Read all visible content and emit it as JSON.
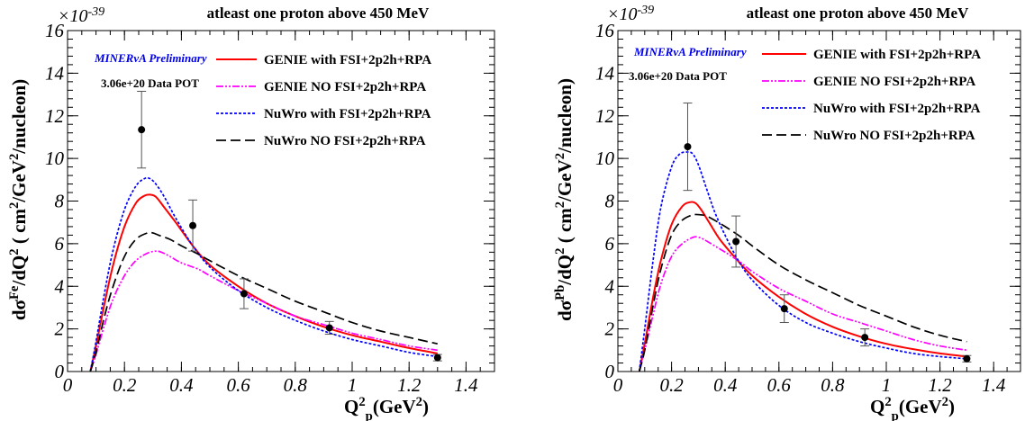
{
  "chart_data": [
    {
      "type": "line",
      "title": "atleast one proton above 450 MeV",
      "xlabel": "Q²_p(GeV²)",
      "ylabel": "dσ^Fe/dQ² ( cm²/GeV²/nucleon)",
      "y_multiplier": "×10^-39",
      "xlim": [
        0,
        1.5
      ],
      "ylim": [
        0,
        16
      ],
      "xticks": [
        "0",
        "0.2",
        "0.4",
        "0.6",
        "0.8",
        "1",
        "1.2",
        "1.4"
      ],
      "yticks": [
        "0",
        "2",
        "4",
        "6",
        "8",
        "10",
        "12",
        "14",
        "16"
      ],
      "annotations": [
        "MINERvA Preliminary",
        "3.06e+20 Data POT"
      ],
      "legend_position": "top-right",
      "grid": false,
      "series": [
        {
          "name": "GENIE with FSI+2p2h+RPA",
          "color": "#ff0000",
          "style": "solid",
          "x": [
            0.08,
            0.1,
            0.13,
            0.16,
            0.2,
            0.24,
            0.27,
            0.29,
            0.31,
            0.34,
            0.38,
            0.44,
            0.5,
            0.6,
            0.7,
            0.8,
            0.9,
            1.0,
            1.1,
            1.2,
            1.3
          ],
          "y": [
            0,
            1.2,
            3.2,
            5.0,
            6.8,
            7.9,
            8.25,
            8.3,
            8.2,
            7.7,
            7.0,
            5.9,
            5.0,
            4.0,
            3.2,
            2.6,
            2.1,
            1.7,
            1.4,
            1.1,
            0.85
          ]
        },
        {
          "name": "GENIE NO FSI+2p2h+RPA",
          "color": "#ff00ff",
          "style": "dashdot",
          "x": [
            0.08,
            0.1,
            0.13,
            0.16,
            0.2,
            0.24,
            0.28,
            0.31,
            0.33,
            0.36,
            0.4,
            0.46,
            0.5,
            0.6,
            0.7,
            0.8,
            0.9,
            1.0,
            1.1,
            1.2,
            1.3
          ],
          "y": [
            0,
            0.8,
            2.2,
            3.4,
            4.5,
            5.2,
            5.55,
            5.65,
            5.6,
            5.4,
            5.1,
            4.8,
            4.5,
            3.8,
            3.2,
            2.6,
            2.2,
            1.8,
            1.5,
            1.2,
            1.0
          ]
        },
        {
          "name": "NuWro with FSI+2p2h+RPA",
          "color": "#0000ff",
          "style": "dotted",
          "x": [
            0.08,
            0.1,
            0.13,
            0.16,
            0.2,
            0.24,
            0.27,
            0.29,
            0.31,
            0.34,
            0.38,
            0.44,
            0.5,
            0.6,
            0.7,
            0.8,
            0.9,
            1.0,
            1.1,
            1.2,
            1.3
          ],
          "y": [
            0,
            1.4,
            3.7,
            5.7,
            7.6,
            8.7,
            9.05,
            9.05,
            8.8,
            8.2,
            7.2,
            5.9,
            4.9,
            3.8,
            3.0,
            2.4,
            1.9,
            1.5,
            1.2,
            0.9,
            0.7
          ]
        },
        {
          "name": "NuWro NO FSI+2p2h+RPA",
          "color": "#000000",
          "style": "dashed",
          "x": [
            0.08,
            0.1,
            0.13,
            0.16,
            0.2,
            0.24,
            0.28,
            0.3,
            0.32,
            0.36,
            0.4,
            0.46,
            0.5,
            0.6,
            0.7,
            0.8,
            0.9,
            1.0,
            1.1,
            1.2,
            1.3
          ],
          "y": [
            0,
            0.9,
            2.6,
            4.0,
            5.4,
            6.2,
            6.5,
            6.5,
            6.4,
            6.2,
            5.9,
            5.5,
            5.2,
            4.5,
            3.9,
            3.3,
            2.8,
            2.3,
            1.9,
            1.6,
            1.3
          ]
        }
      ],
      "data_points": {
        "x": [
          0.26,
          0.44,
          0.62,
          0.92,
          1.3
        ],
        "y": [
          11.35,
          6.85,
          3.65,
          2.05,
          0.65
        ],
        "yerr": [
          1.8,
          1.2,
          0.7,
          0.3,
          0.15
        ]
      }
    },
    {
      "type": "line",
      "title": "atleast one proton above 450 MeV",
      "xlabel": "Q²_p(GeV²)",
      "ylabel": "dσ^Pb/dQ² ( cm²/GeV²/nucleon)",
      "y_multiplier": "×10^-39",
      "xlim": [
        0,
        1.5
      ],
      "ylim": [
        0,
        16
      ],
      "xticks": [
        "0",
        "0.2",
        "0.4",
        "0.6",
        "0.8",
        "1",
        "1.2",
        "1.4"
      ],
      "yticks": [
        "0",
        "2",
        "4",
        "6",
        "8",
        "10",
        "12",
        "14",
        "16"
      ],
      "annotations": [
        "MINERvA Preliminary",
        "3.06e+20 Data POT"
      ],
      "legend_position": "top-right",
      "grid": false,
      "series": [
        {
          "name": "GENIE with FSI+2p2h+RPA",
          "color": "#ff0000",
          "style": "solid",
          "x": [
            0.08,
            0.1,
            0.13,
            0.16,
            0.2,
            0.24,
            0.27,
            0.29,
            0.31,
            0.34,
            0.38,
            0.44,
            0.5,
            0.6,
            0.7,
            0.8,
            0.9,
            1.0,
            1.1,
            1.2,
            1.3
          ],
          "y": [
            0,
            1.3,
            3.4,
            5.2,
            6.9,
            7.75,
            7.95,
            7.9,
            7.6,
            7.0,
            6.2,
            5.3,
            4.5,
            3.5,
            2.7,
            2.1,
            1.65,
            1.3,
            1.05,
            0.85,
            0.7
          ]
        },
        {
          "name": "GENIE NO FSI+2p2h+RPA",
          "color": "#ff00ff",
          "style": "dashdot",
          "x": [
            0.08,
            0.1,
            0.13,
            0.16,
            0.2,
            0.24,
            0.28,
            0.3,
            0.32,
            0.36,
            0.4,
            0.46,
            0.5,
            0.6,
            0.7,
            0.8,
            0.9,
            1.0,
            1.1,
            1.2,
            1.3
          ],
          "y": [
            0,
            1.0,
            2.6,
            4.1,
            5.4,
            6.0,
            6.3,
            6.3,
            6.2,
            5.9,
            5.6,
            5.1,
            4.7,
            3.9,
            3.3,
            2.7,
            2.3,
            1.9,
            1.5,
            1.2,
            1.0
          ]
        },
        {
          "name": "NuWro with FSI+2p2h+RPA",
          "color": "#0000ff",
          "style": "dotted",
          "x": [
            0.08,
            0.1,
            0.13,
            0.16,
            0.2,
            0.23,
            0.26,
            0.28,
            0.3,
            0.33,
            0.37,
            0.44,
            0.5,
            0.6,
            0.7,
            0.8,
            0.9,
            1.0,
            1.1,
            1.2,
            1.3
          ],
          "y": [
            0,
            2.0,
            5.1,
            7.7,
            9.6,
            10.2,
            10.3,
            10.2,
            9.7,
            8.6,
            7.2,
            5.4,
            4.3,
            3.1,
            2.3,
            1.8,
            1.4,
            1.1,
            0.85,
            0.7,
            0.6
          ]
        },
        {
          "name": "NuWro NO FSI+2p2h+RPA",
          "color": "#000000",
          "style": "dashed",
          "x": [
            0.08,
            0.1,
            0.13,
            0.16,
            0.2,
            0.24,
            0.28,
            0.31,
            0.33,
            0.36,
            0.4,
            0.46,
            0.5,
            0.6,
            0.7,
            0.8,
            0.9,
            1.0,
            1.1,
            1.2,
            1.3
          ],
          "y": [
            0,
            1.0,
            3.0,
            4.8,
            6.4,
            7.1,
            7.35,
            7.35,
            7.3,
            7.1,
            6.8,
            6.3,
            5.9,
            5.0,
            4.3,
            3.7,
            3.1,
            2.6,
            2.1,
            1.7,
            1.4
          ]
        }
      ],
      "data_points": {
        "x": [
          0.26,
          0.44,
          0.62,
          0.92,
          1.3
        ],
        "y": [
          10.55,
          6.1,
          2.95,
          1.6,
          0.6
        ],
        "yerr": [
          2.05,
          1.2,
          0.65,
          0.4,
          0.15
        ]
      }
    }
  ]
}
